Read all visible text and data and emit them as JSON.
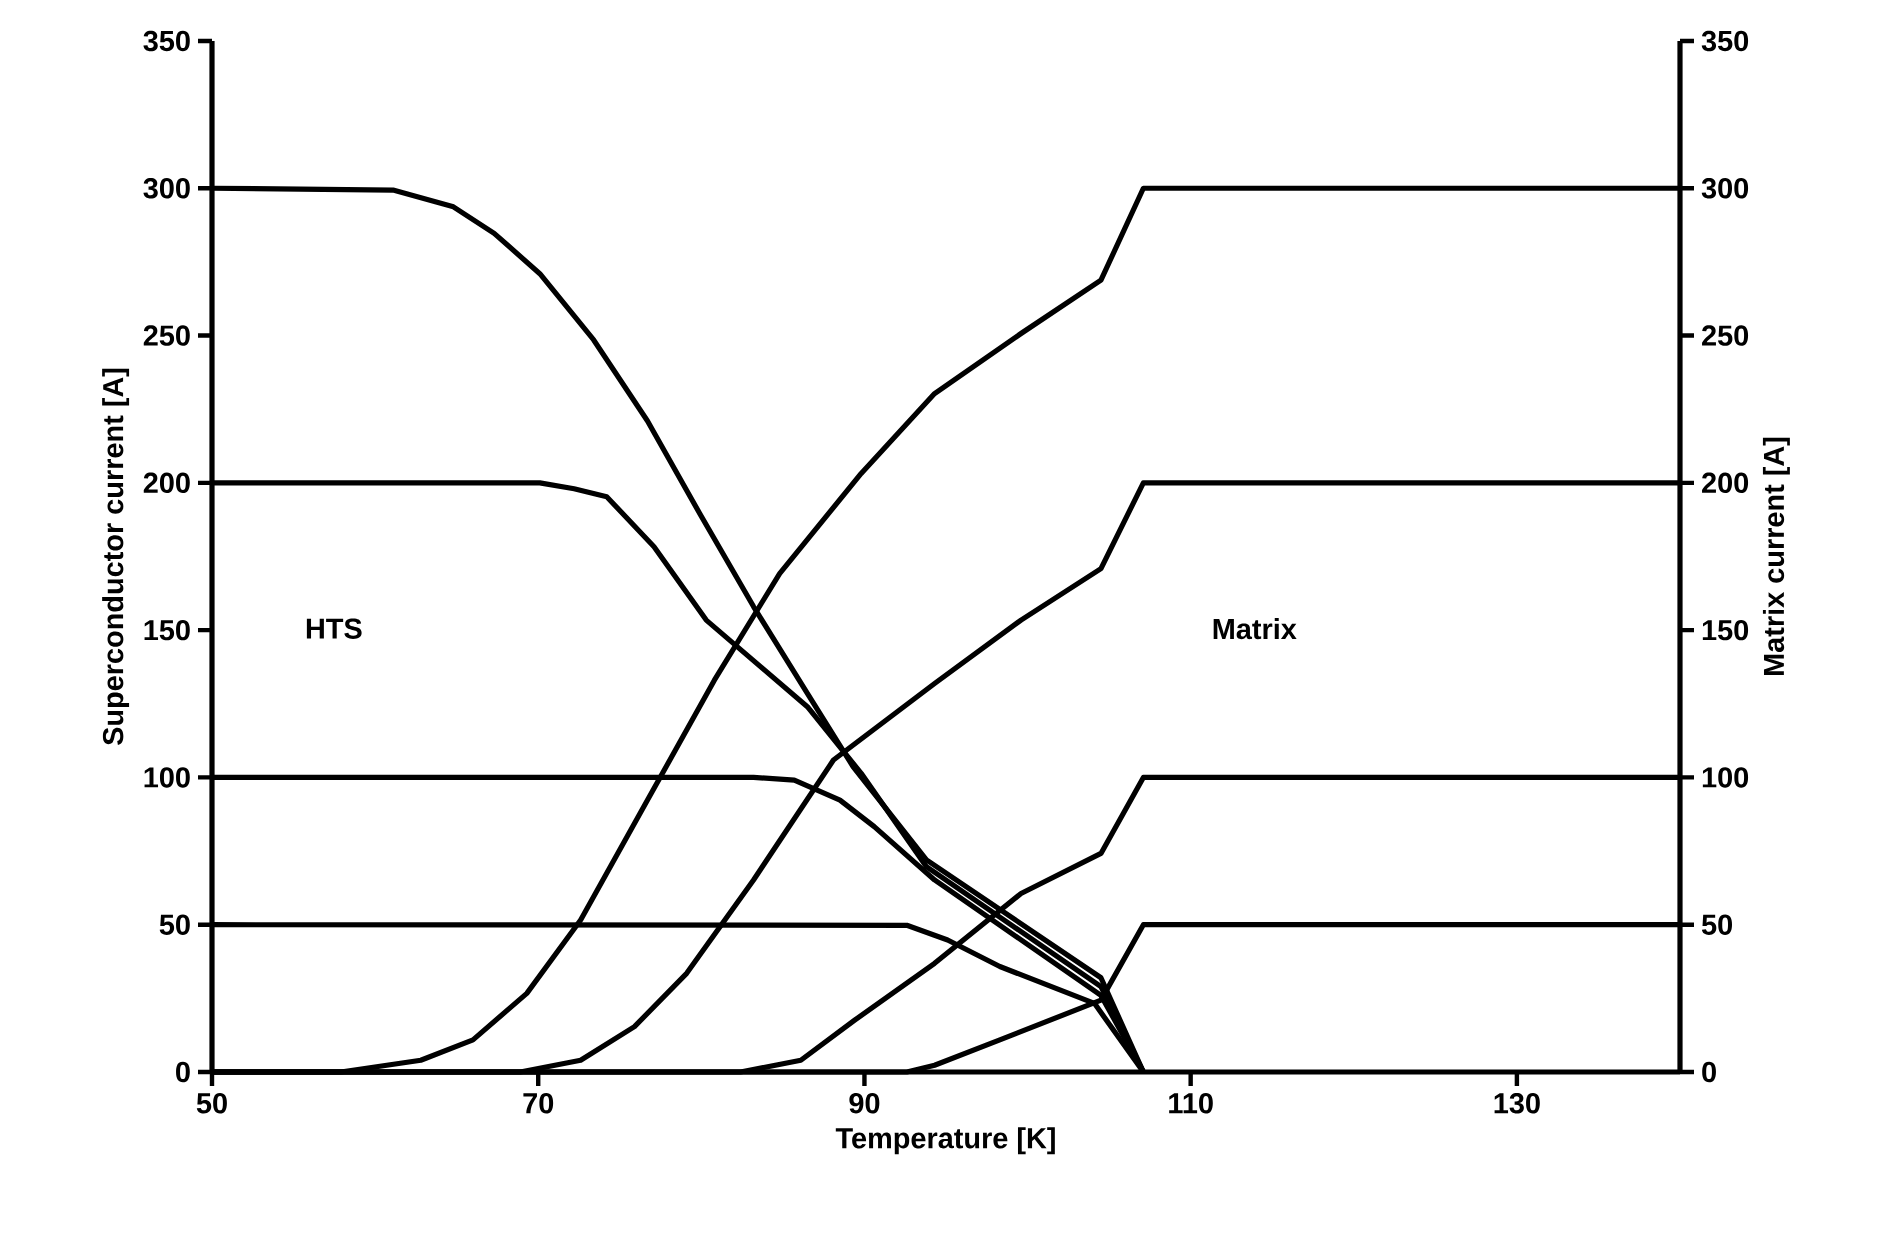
{
  "chart_data": {
    "type": "line",
    "xlabel": "Temperature [K]",
    "ylabel": "Superconductor current [A]",
    "y2label": "Matrix current [A]",
    "xlim": [
      50,
      140
    ],
    "xticks": [
      50,
      70,
      90,
      110,
      130
    ],
    "ylim": [
      0,
      350
    ],
    "yticks": [
      0,
      50,
      100,
      150,
      200,
      250,
      300,
      350
    ],
    "y2lim": [
      0,
      350
    ],
    "y2ticks": [
      0,
      50,
      100,
      150,
      200,
      250,
      300,
      350
    ],
    "grid": false,
    "legend": false,
    "marker": "none",
    "line_style": "solid",
    "annotations": [
      "HTS",
      "Matrix"
    ],
    "series": [
      {
        "color": "#000000",
        "x": [
          50,
          61.1,
          64.8,
          67.3,
          70.1,
          73.4,
          76.7,
          79.9,
          83.2,
          86.5,
          89.3,
          93.8,
          104.5,
          107.1
        ],
        "values": [
          300,
          299.4,
          293.7,
          284.7,
          271,
          248.5,
          221,
          189.6,
          158,
          128.5,
          103.7,
          72,
          32,
          0
        ]
      },
      {
        "color": "#000000",
        "x": [
          50,
          70.1,
          72.2,
          74.2,
          77.1,
          80.3,
          86.5,
          89.8,
          93.8,
          104.5,
          107.1
        ],
        "values": [
          200,
          200,
          198,
          195.3,
          178.3,
          153.4,
          124,
          101.4,
          69.7,
          29,
          0
        ]
      },
      {
        "color": "#000000",
        "x": [
          50,
          83.2,
          85.7,
          88.5,
          90.6,
          94.3,
          104.5,
          107.1
        ],
        "values": [
          100,
          100,
          99.1,
          92.3,
          83.3,
          65.2,
          26,
          0
        ]
      },
      {
        "color": "#000000",
        "x": [
          50,
          92.6,
          95.1,
          98.3,
          104.1,
          107.1
        ],
        "values": [
          50,
          49.8,
          44.8,
          35.8,
          23.3,
          0
        ]
      },
      {
        "color": "#000000",
        "axis": "y2",
        "x": [
          50,
          57.9,
          62.8,
          66.0,
          69.3,
          72.6,
          76.7,
          80.8,
          84.8,
          89.8,
          94.3,
          99.6,
          104.5,
          107.1,
          140
        ],
        "values": [
          0,
          0,
          4,
          10.9,
          26.7,
          51.6,
          92.3,
          133,
          169.2,
          203.2,
          230.3,
          250.7,
          268.8,
          300,
          300
        ]
      },
      {
        "color": "#000000",
        "axis": "y2",
        "x": [
          50,
          68.9,
          72.6,
          75.9,
          79.1,
          83.2,
          88.1,
          94.3,
          99.6,
          104.5,
          107.1,
          140
        ],
        "values": [
          0,
          0,
          4,
          15.4,
          33.5,
          65.2,
          105.9,
          131.9,
          153.4,
          170.9,
          200,
          200
        ]
      },
      {
        "color": "#000000",
        "axis": "y2",
        "x": [
          50,
          82.4,
          86.1,
          89.4,
          94.3,
          99.6,
          104.5,
          107.1,
          140
        ],
        "values": [
          0,
          0,
          4,
          17.6,
          36.9,
          60.6,
          74.2,
          100,
          100
        ]
      },
      {
        "color": "#000000",
        "axis": "y2",
        "x": [
          50,
          92.6,
          94.3,
          98.3,
          104.5,
          107.1,
          140
        ],
        "values": [
          0,
          0,
          2.3,
          10.9,
          24.4,
          50,
          50
        ]
      }
    ]
  }
}
